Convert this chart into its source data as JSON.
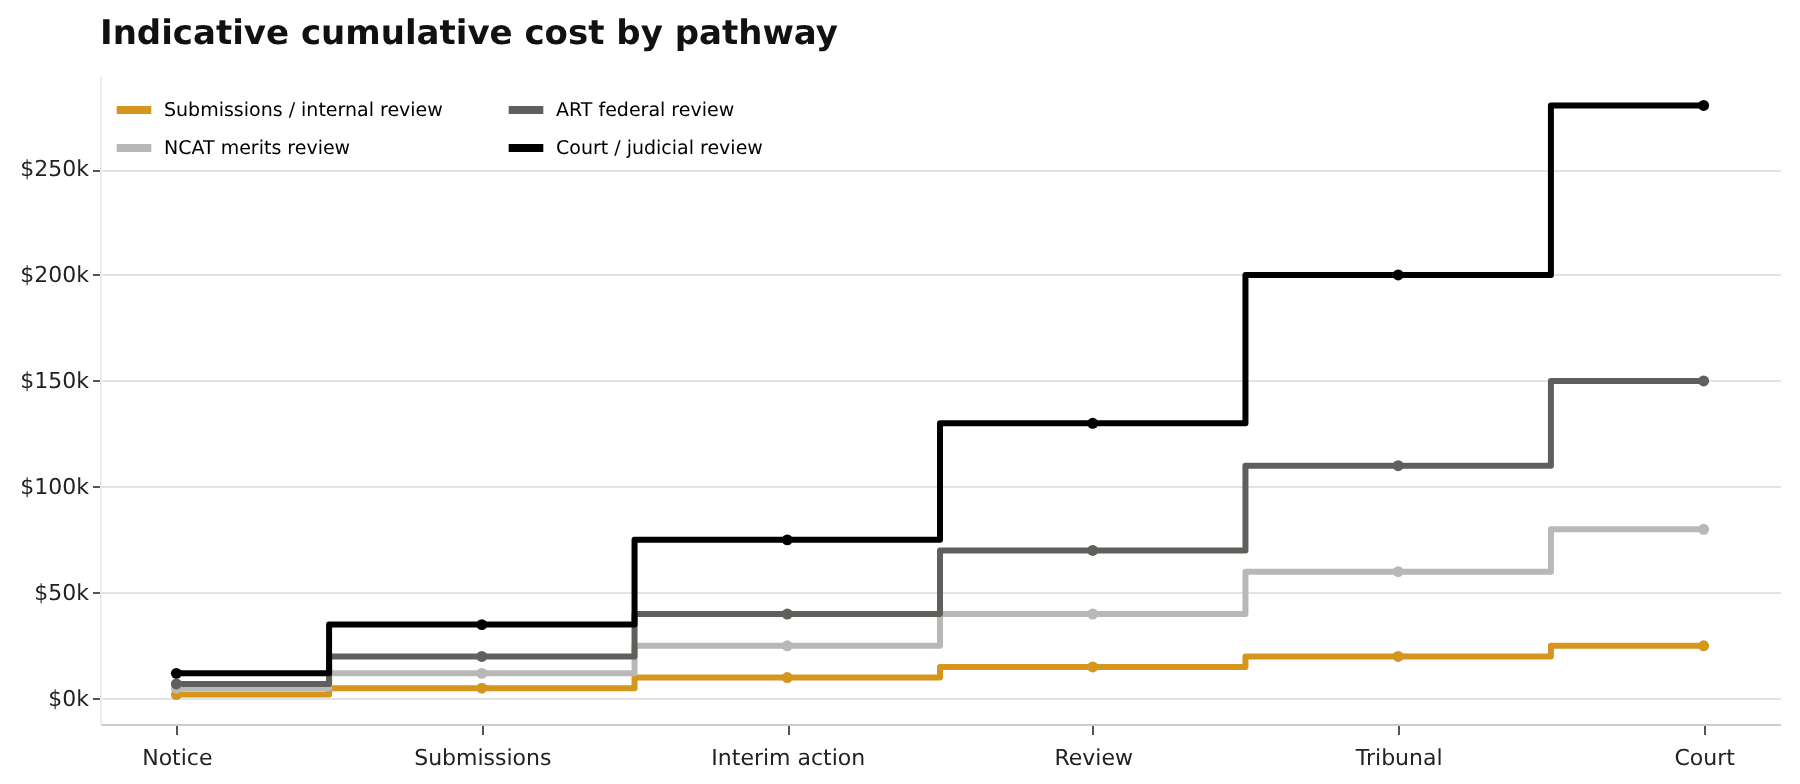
{
  "chart_data": {
    "type": "step",
    "title": "Indicative cumulative cost by pathway",
    "categories": [
      "Notice",
      "Submissions",
      "Interim action",
      "Review",
      "Tribunal",
      "Court"
    ],
    "series": [
      {
        "name": "Submissions / internal review",
        "color": "#d4961c",
        "values": [
          2000,
          5000,
          10000,
          15000,
          20000,
          25000
        ]
      },
      {
        "name": "NCAT merits review",
        "color": "#b8b8b6",
        "values": [
          5000,
          12000,
          25000,
          40000,
          60000,
          80000
        ]
      },
      {
        "name": "ART federal review",
        "color": "#5f5f5c",
        "values": [
          7000,
          20000,
          40000,
          70000,
          110000,
          150000
        ]
      },
      {
        "name": "Court / judicial review",
        "color": "#000000",
        "values": [
          12000,
          35000,
          75000,
          130000,
          200000,
          280000
        ]
      }
    ],
    "ylim": [
      -11900,
      293900
    ],
    "yticks": [
      {
        "value": 0,
        "label": "$0k"
      },
      {
        "value": 50000,
        "label": "$50k"
      },
      {
        "value": 100000,
        "label": "$100k"
      },
      {
        "value": 150000,
        "label": "$150k"
      },
      {
        "value": 200000,
        "label": "$200k"
      },
      {
        "value": 250000,
        "label": "$250k"
      }
    ],
    "grid": "y",
    "legend": "top left",
    "marker": "circle",
    "line_style": "solid"
  }
}
